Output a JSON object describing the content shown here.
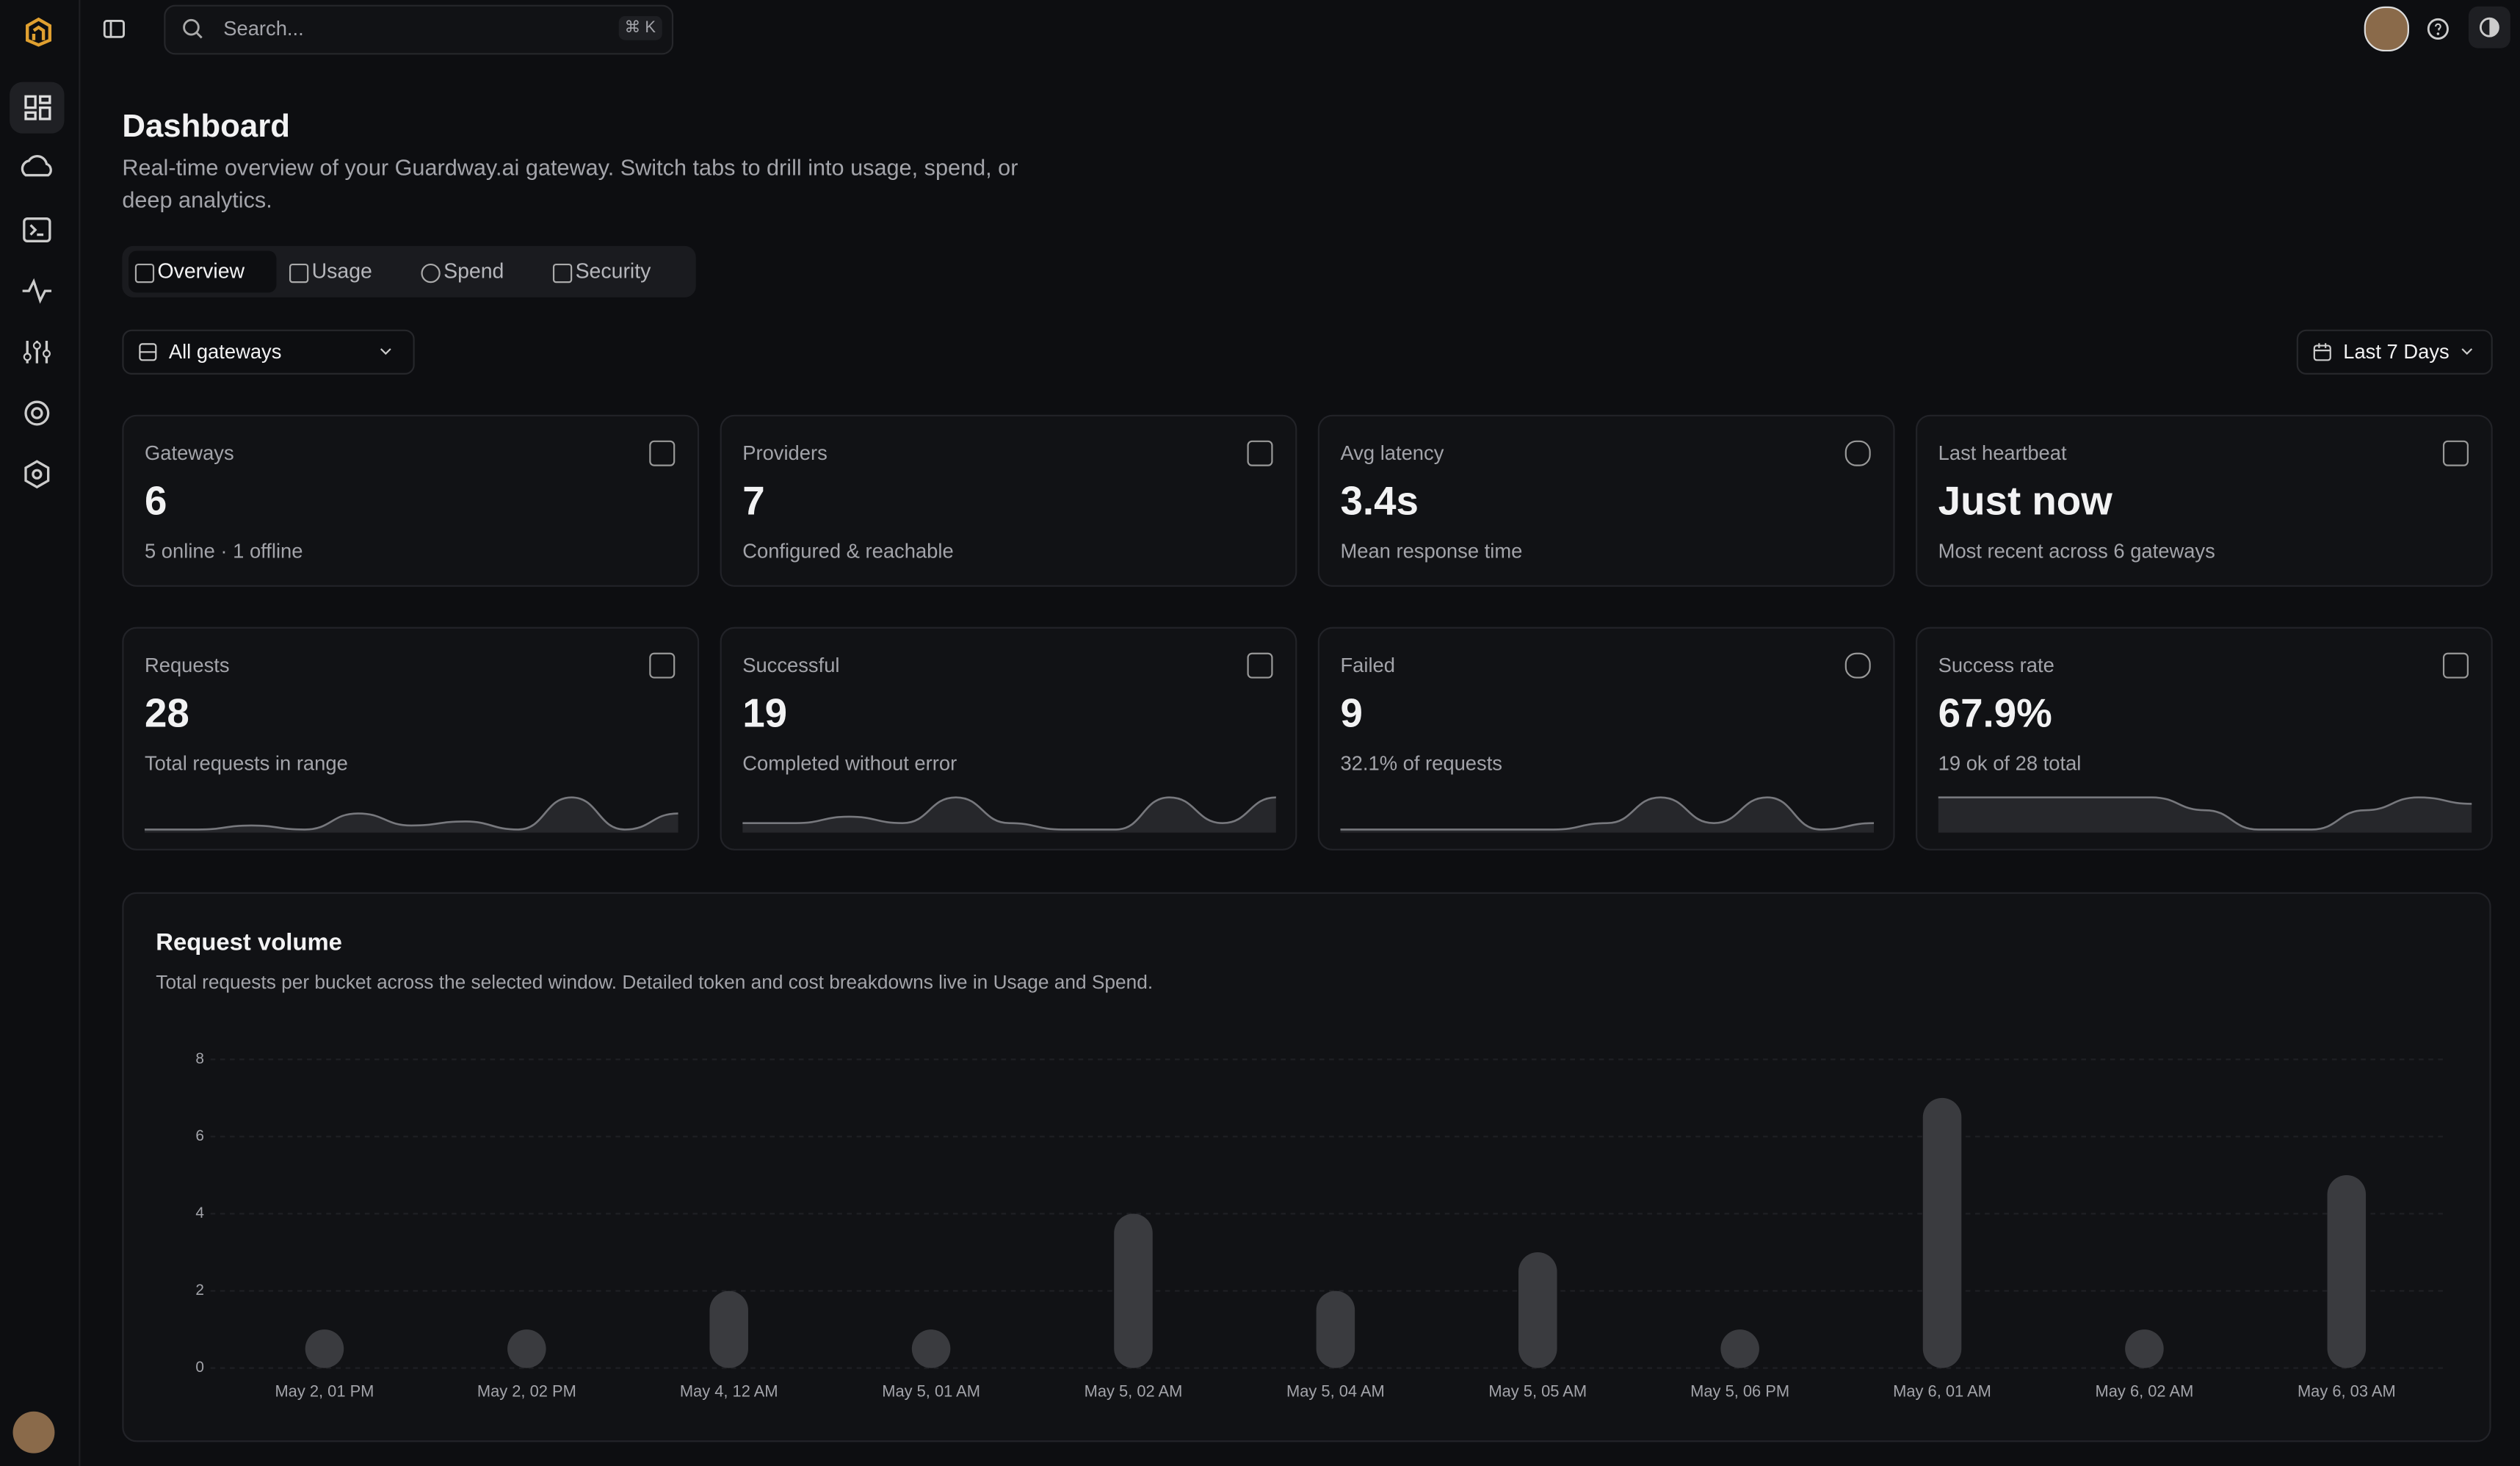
{
  "search": {
    "placeholder": "Search...",
    "shortcut": "⌘ K"
  },
  "header": {
    "title": "Dashboard",
    "subtitle": "Real-time overview of your Guardway.ai gateway. Switch tabs to drill into usage, spend, or deep analytics."
  },
  "tabs": [
    "Overview",
    "Usage",
    "Spend",
    "Security"
  ],
  "gateway_filter": "All gateways",
  "range_filter": "Last 7 Days",
  "cards": [
    {
      "label": "Gateways",
      "value": 6,
      "note": "5 online · 1 offline"
    },
    {
      "label": "Providers",
      "value": 7,
      "note": "Configured & reachable"
    },
    {
      "label": "Avg latency",
      "value": "3.4s",
      "note": "Mean response time"
    },
    {
      "label": "Last heartbeat",
      "value": "Just now",
      "note": "Most recent across 6 gateways"
    },
    {
      "label": "Requests",
      "value": 28,
      "note": "Total requests in range",
      "spark": [
        1,
        1,
        1.5,
        1,
        3,
        1.5,
        2,
        1,
        5,
        1,
        3
      ]
    },
    {
      "label": "Successful",
      "value": 19,
      "note": "Completed without error",
      "spark": [
        1,
        1,
        2,
        1,
        5,
        1,
        0,
        0,
        5,
        1,
        5
      ]
    },
    {
      "label": "Failed",
      "value": 9,
      "note": "32.1% of requests",
      "spark": [
        0,
        0,
        0,
        0,
        0,
        1,
        5,
        1,
        5,
        0,
        1
      ]
    },
    {
      "label": "Success rate",
      "value": "67.9%",
      "note": "19 ok of 28 total",
      "spark": [
        5,
        5,
        5,
        5,
        5,
        3,
        0,
        0,
        3,
        5,
        4
      ]
    }
  ],
  "chart_data": {
    "type": "bar",
    "title": "Request volume",
    "subtitle": "Total requests per bucket across the selected window. Detailed token and cost breakdowns live in Usage and Spend.",
    "categories": [
      "May 2, 01 PM",
      "May 2, 02 PM",
      "May 4, 12 AM",
      "May 5, 01 AM",
      "May 5, 02 AM",
      "May 5, 04 AM",
      "May 5, 05 AM",
      "May 5, 06 PM",
      "May 6, 01 AM",
      "May 6, 02 AM",
      "May 6, 03 AM"
    ],
    "values": [
      1,
      1,
      2,
      1,
      4,
      2,
      3,
      1,
      7,
      1,
      5
    ],
    "color": "#3a3b3f",
    "ylim": [
      0,
      8
    ],
    "yticks": [
      0,
      2,
      4,
      6,
      8
    ],
    "grid": true
  }
}
